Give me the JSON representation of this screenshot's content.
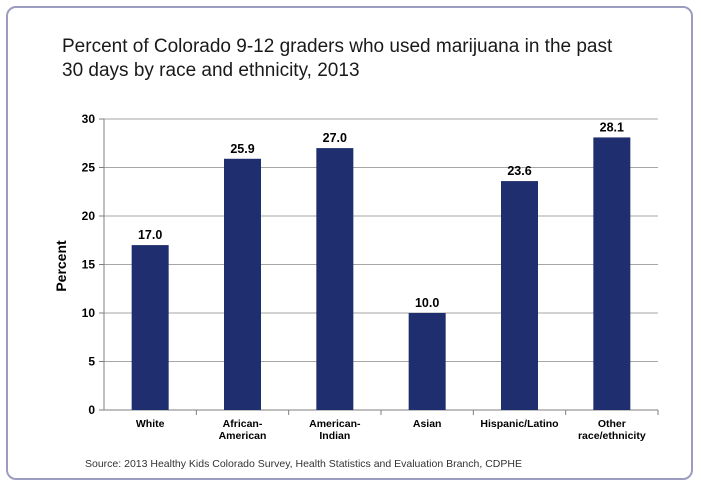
{
  "chart_data": {
    "type": "bar",
    "title": "Percent of Colorado 9-12 graders who used marijuana in the past 30 days by race and ethnicity, 2013",
    "title_lines": [
      "Percent of Colorado 9-12 graders who used marijuana in the past",
      "30 days by race and ethnicity, 2013"
    ],
    "xlabel": "",
    "ylabel": "Percent",
    "ylim": [
      0,
      30
    ],
    "yticks": [
      0,
      5,
      10,
      15,
      20,
      25,
      30
    ],
    "grid": true,
    "legend": "none",
    "bar_color": "#1f2e6e",
    "categories": [
      [
        "White"
      ],
      [
        "African-",
        "American"
      ],
      [
        "American-",
        "Indian"
      ],
      [
        "Asian"
      ],
      [
        "Hispanic/Latino"
      ],
      [
        "Other",
        "race/ethnicity"
      ]
    ],
    "values": [
      17.0,
      25.9,
      27.0,
      10.0,
      23.6,
      28.1
    ],
    "value_labels": [
      "17.0",
      "25.9",
      "27.0",
      "10.0",
      "23.6",
      "28.1"
    ],
    "source": "Source: 2013 Healthy Kids Colorado Survey, Health Statistics and Evaluation Branch, CDPHE"
  }
}
